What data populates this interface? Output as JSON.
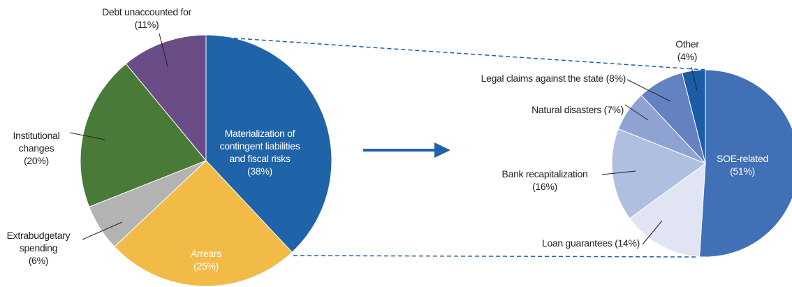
{
  "chart_data": [
    {
      "type": "pie",
      "categories": [
        "Materialization of contingent liabilities and fiscal risks",
        "Arrears",
        "Extrabudgetary spending",
        "Institutional changes",
        "Debt unaccounted for"
      ],
      "values": [
        38,
        25,
        6,
        20,
        11
      ],
      "value_labels": [
        "(38%)",
        "(25%)",
        "(6%)",
        "(20%)",
        "(11%)"
      ],
      "colors": [
        "#1f64a8",
        "#f2bb48",
        "#b3b3b3",
        "#4a7a37",
        "#6a4c87"
      ]
    },
    {
      "type": "pie",
      "categories": [
        "SOE-related",
        "Loan guarantees",
        "Bank recapitalization",
        "Natural disasters",
        "Legal claims against the state",
        "Other"
      ],
      "values": [
        51,
        14,
        16,
        7,
        8,
        4
      ],
      "value_labels": [
        "(51%)",
        "(14%)",
        "(16%)",
        "(7%)",
        "(8%)",
        "(4%)"
      ],
      "colors": [
        "#4170b6",
        "#e1e5f3",
        "#afbfe0",
        "#8ea3d1",
        "#6482c2",
        "#1a5ca6"
      ]
    }
  ]
}
